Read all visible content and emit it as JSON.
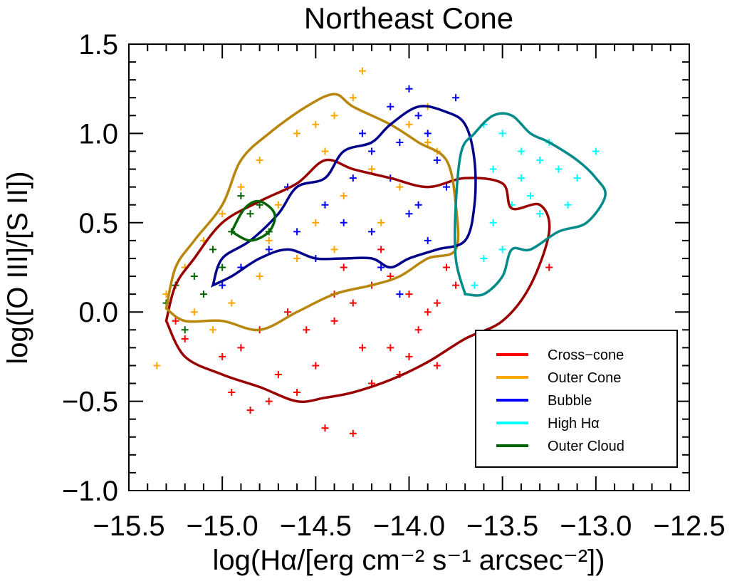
{
  "chart_data": {
    "type": "scatter",
    "title": "Northeast Cone",
    "xlabel": "log(Hα/[erg cm⁻² s⁻¹ arcsec⁻²])",
    "ylabel": "log([O III]/[S II])",
    "xlim": [
      -15.5,
      -12.5
    ],
    "ylim": [
      -1.0,
      1.5
    ],
    "x_ticks": [
      -15.5,
      -15.0,
      -14.5,
      -14.0,
      -13.5,
      -13.0,
      -12.5
    ],
    "y_ticks": [
      -1.0,
      -0.5,
      0.0,
      0.5,
      1.0,
      1.5
    ],
    "x_tick_labels": [
      "−15.5",
      "−15.0",
      "−14.5",
      "−14.0",
      "−13.5",
      "−13.0",
      "−12.5"
    ],
    "y_tick_labels": [
      "−1.0",
      "−0.5",
      "0.0",
      "0.5",
      "1.0",
      "1.5"
    ],
    "legend_position": "bottom-right",
    "series": [
      {
        "name": "Cross−cone",
        "color": "#ff0000",
        "contour_color": "#990000",
        "points": [
          [
            -14.55,
            -0.1
          ],
          [
            -14.4,
            -0.05
          ],
          [
            -14.3,
            0.05
          ],
          [
            -14.2,
            0.15
          ],
          [
            -14.1,
            0.2
          ],
          [
            -14.0,
            0.1
          ],
          [
            -14.5,
            -0.3
          ],
          [
            -14.6,
            -0.45
          ],
          [
            -14.45,
            -0.65
          ],
          [
            -14.3,
            -0.68
          ],
          [
            -14.75,
            -0.5
          ],
          [
            -14.2,
            -0.4
          ],
          [
            -14.9,
            -0.2
          ],
          [
            -15.0,
            -0.25
          ],
          [
            -13.9,
            0.0
          ],
          [
            -13.8,
            0.25
          ],
          [
            -13.85,
            0.05
          ],
          [
            -14.05,
            -0.35
          ],
          [
            -14.15,
            0.35
          ],
          [
            -14.35,
            0.25
          ],
          [
            -14.65,
            0.0
          ],
          [
            -14.8,
            -0.1
          ],
          [
            -15.2,
            -0.15
          ],
          [
            -15.25,
            -0.05
          ],
          [
            -14.1,
            -0.2
          ],
          [
            -13.95,
            -0.1
          ],
          [
            -13.75,
            0.15
          ],
          [
            -14.25,
            -0.2
          ],
          [
            -14.7,
            -0.35
          ],
          [
            -14.4,
            0.1
          ],
          [
            -13.85,
            -0.3
          ],
          [
            -14.0,
            -0.25
          ],
          [
            -13.25,
            0.25
          ],
          [
            -14.85,
            -0.55
          ],
          [
            -14.95,
            -0.45
          ]
        ],
        "contour": [
          [
            -15.3,
            -0.05
          ],
          [
            -15.2,
            -0.25
          ],
          [
            -15.0,
            -0.35
          ],
          [
            -14.8,
            -0.42
          ],
          [
            -14.6,
            -0.5
          ],
          [
            -14.45,
            -0.48
          ],
          [
            -14.3,
            -0.45
          ],
          [
            -14.1,
            -0.38
          ],
          [
            -13.9,
            -0.28
          ],
          [
            -13.7,
            -0.15
          ],
          [
            -13.5,
            -0.05
          ],
          [
            -13.35,
            0.15
          ],
          [
            -13.25,
            0.45
          ],
          [
            -13.3,
            0.6
          ],
          [
            -13.45,
            0.58
          ],
          [
            -13.5,
            0.72
          ],
          [
            -13.7,
            0.75
          ],
          [
            -13.9,
            0.7
          ],
          [
            -14.1,
            0.75
          ],
          [
            -14.3,
            0.8
          ],
          [
            -14.45,
            0.85
          ],
          [
            -14.6,
            0.72
          ],
          [
            -14.8,
            0.62
          ],
          [
            -15.0,
            0.5
          ],
          [
            -15.15,
            0.3
          ],
          [
            -15.25,
            0.15
          ],
          [
            -15.3,
            -0.05
          ]
        ]
      },
      {
        "name": "Outer Cone",
        "color": "#ffa500",
        "contour_color": "#b8860b",
        "points": [
          [
            -14.8,
            0.85
          ],
          [
            -14.6,
            1.0
          ],
          [
            -14.4,
            1.1
          ],
          [
            -14.3,
            1.2
          ],
          [
            -14.5,
            1.05
          ],
          [
            -14.9,
            0.7
          ],
          [
            -15.0,
            0.55
          ],
          [
            -15.1,
            0.4
          ],
          [
            -15.2,
            0.25
          ],
          [
            -15.3,
            0.1
          ],
          [
            -14.7,
            0.6
          ],
          [
            -14.5,
            0.5
          ],
          [
            -14.35,
            0.65
          ],
          [
            -14.2,
            0.8
          ],
          [
            -14.0,
            1.05
          ],
          [
            -13.9,
            1.15
          ],
          [
            -13.85,
            0.9
          ],
          [
            -14.15,
            0.5
          ],
          [
            -14.6,
            0.3
          ],
          [
            -14.8,
            0.2
          ],
          [
            -14.95,
            0.05
          ],
          [
            -15.05,
            -0.1
          ],
          [
            -14.25,
            1.35
          ],
          [
            -15.35,
            -0.3
          ],
          [
            -14.45,
            0.9
          ],
          [
            -14.75,
            0.4
          ],
          [
            -13.9,
            0.95
          ],
          [
            -14.05,
            0.7
          ],
          [
            -15.15,
            0.0
          ],
          [
            -14.4,
            0.35
          ]
        ],
        "contour": [
          [
            -15.3,
            0.02
          ],
          [
            -15.25,
            0.25
          ],
          [
            -15.15,
            0.4
          ],
          [
            -15.0,
            0.6
          ],
          [
            -14.9,
            0.85
          ],
          [
            -14.75,
            1.0
          ],
          [
            -14.55,
            1.15
          ],
          [
            -14.4,
            1.22
          ],
          [
            -14.3,
            1.15
          ],
          [
            -14.1,
            1.05
          ],
          [
            -13.95,
            0.95
          ],
          [
            -13.8,
            0.85
          ],
          [
            -13.75,
            0.6
          ],
          [
            -13.75,
            0.35
          ],
          [
            -13.9,
            0.3
          ],
          [
            -14.05,
            0.2
          ],
          [
            -14.2,
            0.15
          ],
          [
            -14.4,
            0.1
          ],
          [
            -14.6,
            0.0
          ],
          [
            -14.8,
            -0.1
          ],
          [
            -15.0,
            -0.05
          ],
          [
            -15.2,
            -0.05
          ],
          [
            -15.3,
            0.02
          ]
        ]
      },
      {
        "name": "Bubble",
        "color": "#0000ff",
        "contour_color": "#00008b",
        "points": [
          [
            -14.1,
            1.15
          ],
          [
            -14.0,
            1.25
          ],
          [
            -13.95,
            1.1
          ],
          [
            -13.9,
            1.0
          ],
          [
            -13.85,
            0.85
          ],
          [
            -14.2,
            0.9
          ],
          [
            -14.3,
            0.75
          ],
          [
            -14.45,
            0.6
          ],
          [
            -14.6,
            0.45
          ],
          [
            -14.75,
            0.35
          ],
          [
            -14.9,
            0.25
          ],
          [
            -15.0,
            0.15
          ],
          [
            -14.5,
            0.3
          ],
          [
            -14.2,
            0.45
          ],
          [
            -14.0,
            0.55
          ],
          [
            -13.8,
            0.7
          ],
          [
            -13.75,
            1.2
          ],
          [
            -14.05,
            0.95
          ],
          [
            -14.25,
            1.0
          ],
          [
            -14.15,
            0.25
          ],
          [
            -14.05,
            0.1
          ],
          [
            -13.9,
            0.4
          ],
          [
            -14.35,
            0.5
          ],
          [
            -14.65,
            0.7
          ],
          [
            -13.95,
            0.6
          ],
          [
            -14.1,
            0.75
          ]
        ],
        "contour": [
          [
            -15.05,
            0.15
          ],
          [
            -15.0,
            0.3
          ],
          [
            -14.85,
            0.4
          ],
          [
            -14.7,
            0.55
          ],
          [
            -14.6,
            0.7
          ],
          [
            -14.45,
            0.75
          ],
          [
            -14.35,
            0.9
          ],
          [
            -14.2,
            0.95
          ],
          [
            -14.1,
            1.05
          ],
          [
            -13.95,
            1.15
          ],
          [
            -13.8,
            1.12
          ],
          [
            -13.7,
            1.05
          ],
          [
            -13.65,
            0.85
          ],
          [
            -13.65,
            0.6
          ],
          [
            -13.7,
            0.4
          ],
          [
            -13.85,
            0.35
          ],
          [
            -14.0,
            0.3
          ],
          [
            -14.1,
            0.25
          ],
          [
            -14.2,
            0.3
          ],
          [
            -14.35,
            0.3
          ],
          [
            -14.5,
            0.3
          ],
          [
            -14.65,
            0.35
          ],
          [
            -14.8,
            0.3
          ],
          [
            -14.95,
            0.2
          ],
          [
            -15.05,
            0.15
          ]
        ]
      },
      {
        "name": "High Hα",
        "color": "#00ffff",
        "contour_color": "#008b8b",
        "points": [
          [
            -13.6,
            1.05
          ],
          [
            -13.5,
            1.0
          ],
          [
            -13.4,
            0.9
          ],
          [
            -13.3,
            0.85
          ],
          [
            -13.2,
            0.8
          ],
          [
            -13.1,
            0.75
          ],
          [
            -13.0,
            0.9
          ],
          [
            -13.15,
            0.6
          ],
          [
            -13.3,
            0.55
          ],
          [
            -13.45,
            0.6
          ],
          [
            -13.55,
            0.5
          ],
          [
            -13.6,
            0.3
          ],
          [
            -13.65,
            0.15
          ],
          [
            -13.5,
            0.35
          ],
          [
            -13.4,
            0.75
          ],
          [
            -13.25,
            0.95
          ],
          [
            -13.55,
            0.8
          ],
          [
            -13.35,
            0.65
          ]
        ],
        "contour": [
          [
            -13.7,
            0.1
          ],
          [
            -13.6,
            0.1
          ],
          [
            -13.5,
            0.2
          ],
          [
            -13.45,
            0.35
          ],
          [
            -13.35,
            0.35
          ],
          [
            -13.2,
            0.45
          ],
          [
            -13.05,
            0.5
          ],
          [
            -12.95,
            0.65
          ],
          [
            -13.0,
            0.75
          ],
          [
            -13.1,
            0.85
          ],
          [
            -13.25,
            0.95
          ],
          [
            -13.35,
            1.0
          ],
          [
            -13.45,
            1.1
          ],
          [
            -13.55,
            1.1
          ],
          [
            -13.65,
            1.0
          ],
          [
            -13.72,
            0.9
          ],
          [
            -13.75,
            0.6
          ],
          [
            -13.75,
            0.3
          ],
          [
            -13.7,
            0.1
          ]
        ]
      },
      {
        "name": "Outer Cloud",
        "color": "#006400",
        "contour_color": "#006400",
        "points": [
          [
            -15.3,
            0.05
          ],
          [
            -15.25,
            0.15
          ],
          [
            -15.15,
            0.2
          ],
          [
            -15.05,
            0.35
          ],
          [
            -14.95,
            0.45
          ],
          [
            -14.85,
            0.55
          ],
          [
            -14.8,
            0.6
          ],
          [
            -14.9,
            0.65
          ],
          [
            -15.1,
            0.1
          ],
          [
            -15.2,
            -0.1
          ],
          [
            -15.0,
            0.25
          ],
          [
            -14.75,
            0.45
          ]
        ],
        "contour": [
          [
            -14.95,
            0.45
          ],
          [
            -14.88,
            0.58
          ],
          [
            -14.8,
            0.62
          ],
          [
            -14.72,
            0.55
          ],
          [
            -14.75,
            0.45
          ],
          [
            -14.85,
            0.4
          ],
          [
            -14.95,
            0.45
          ]
        ]
      }
    ]
  }
}
